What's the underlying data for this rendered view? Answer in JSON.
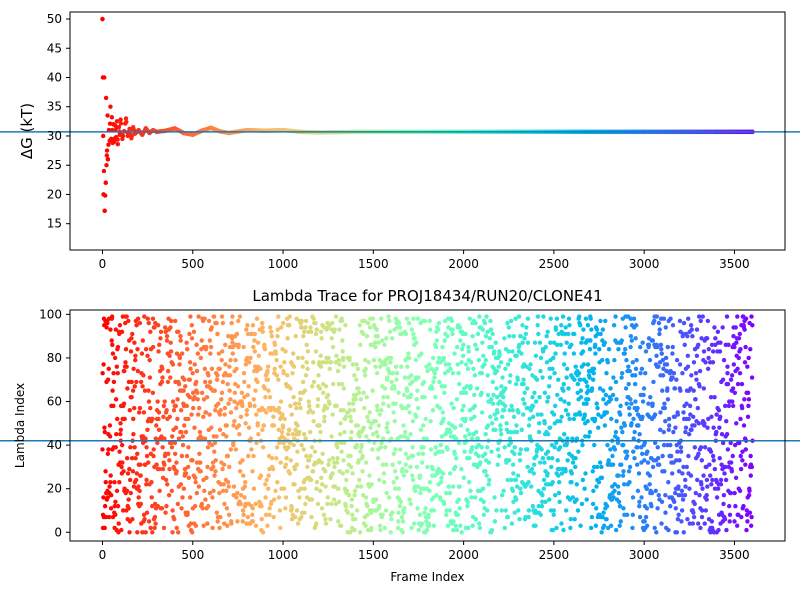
{
  "chart_data": [
    {
      "type": "scatter",
      "title": "",
      "xlabel": "",
      "ylabel": "ΔG (kT)",
      "xlim": [
        -180,
        3780
      ],
      "ylim": [
        10.5,
        51.2
      ],
      "xticks": [
        0,
        500,
        1000,
        1500,
        2000,
        2500,
        3000,
        3500
      ],
      "yticks": [
        15,
        20,
        25,
        30,
        35,
        40,
        45,
        50
      ],
      "grid": false,
      "legend": "none",
      "colormap": "rainbow (red at frame 0 to violet at frame 3600)",
      "n_frames": 3600,
      "hline": 30.7,
      "hline_color": "#1f77b4",
      "series": [
        {
          "x": [
            0,
            2,
            4,
            6,
            8,
            10,
            12,
            15,
            18,
            20,
            22,
            25,
            28,
            30,
            33,
            36,
            40,
            44,
            48,
            52,
            56,
            60,
            65,
            70,
            75,
            80,
            85,
            90,
            95,
            100,
            110,
            120,
            130,
            140,
            150,
            160,
            170,
            180,
            200,
            220,
            240,
            260,
            280,
            300,
            350,
            400,
            450,
            500,
            550,
            600,
            650,
            700,
            800,
            900,
            1000,
            1100,
            1200,
            1400,
            1600,
            1800,
            2000,
            2200,
            2400,
            2600,
            2800,
            3000,
            3200,
            3400,
            3600
          ],
          "y": [
            50.0,
            40.0,
            30.0,
            20.0,
            24.0,
            40.0,
            17.2,
            19.8,
            22.0,
            36.5,
            25.0,
            27.5,
            33.5,
            26.0,
            28.5,
            31.0,
            29.2,
            35.0,
            29.5,
            33.2,
            28.8,
            32.0,
            29.0,
            31.8,
            29.8,
            32.5,
            28.6,
            31.5,
            30.2,
            32.8,
            29.5,
            30.8,
            33.0,
            30.0,
            31.2,
            29.6,
            31.5,
            30.4,
            31.0,
            30.2,
            31.3,
            30.5,
            31.0,
            30.7,
            30.9,
            31.3,
            30.5,
            30.2,
            30.9,
            31.4,
            30.8,
            30.5,
            31.0,
            30.9,
            31.0,
            30.7,
            30.6,
            30.7,
            30.7,
            30.7,
            30.7,
            30.7,
            30.7,
            30.7,
            30.7,
            30.7,
            30.7,
            30.7,
            30.7
          ]
        }
      ]
    },
    {
      "type": "scatter",
      "title": "Lambda Trace for PROJ18434/RUN20/CLONE41",
      "xlabel": "Frame Index",
      "ylabel": "Lambda Index",
      "xlim": [
        -180,
        3780
      ],
      "ylim": [
        -4,
        102
      ],
      "xticks": [
        0,
        500,
        1000,
        1500,
        2000,
        2500,
        3000,
        3500
      ],
      "yticks": [
        0,
        20,
        40,
        60,
        80,
        100
      ],
      "grid": false,
      "legend": "none",
      "colormap": "rainbow (red at frame 0 to violet at frame 3600)",
      "n_frames": 3600,
      "lambda_range": [
        0,
        99
      ],
      "distribution": "lambda index uniformly distributed 0–99 at every frame",
      "hline": 42,
      "hline_color": "#1f77b4"
    }
  ]
}
